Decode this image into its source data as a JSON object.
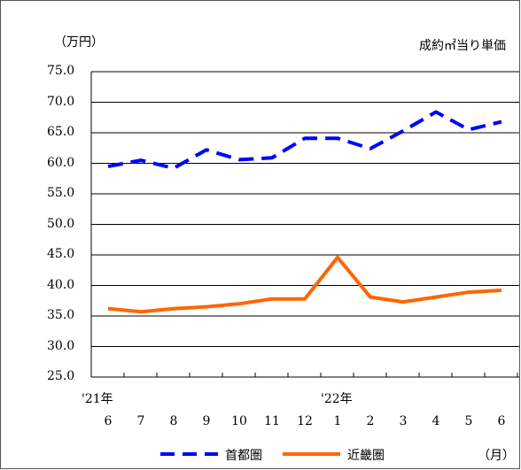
{
  "chart_data": {
    "type": "line",
    "unit_label": "（万円）",
    "title": "成約㎡当り単価",
    "ylim": [
      25.0,
      75.0
    ],
    "yticks": [
      "75.0",
      "70.0",
      "65.0",
      "60.0",
      "55.0",
      "50.0",
      "45.0",
      "40.0",
      "35.0",
      "30.0",
      "25.0"
    ],
    "categories": [
      "6",
      "7",
      "8",
      "9",
      "10",
      "11",
      "12",
      "1",
      "2",
      "3",
      "4",
      "5",
      "6"
    ],
    "year_labels": [
      "'21年",
      "'22年"
    ],
    "month_unit": "（月）",
    "grid": true,
    "legend_position": "bottom",
    "series": [
      {
        "name": "首都圏",
        "color": "#0000ff",
        "style": "dashed",
        "values": [
          59.5,
          60.5,
          59.2,
          62.2,
          60.6,
          60.9,
          64.1,
          64.1,
          62.4,
          65.3,
          68.4,
          65.5,
          66.8
        ]
      },
      {
        "name": "近畿圏",
        "color": "#ff6600",
        "style": "solid",
        "values": [
          36.2,
          35.7,
          36.2,
          36.5,
          37.0,
          37.8,
          37.8,
          44.6,
          38.1,
          37.3,
          38.1,
          38.9,
          39.2
        ]
      }
    ]
  }
}
